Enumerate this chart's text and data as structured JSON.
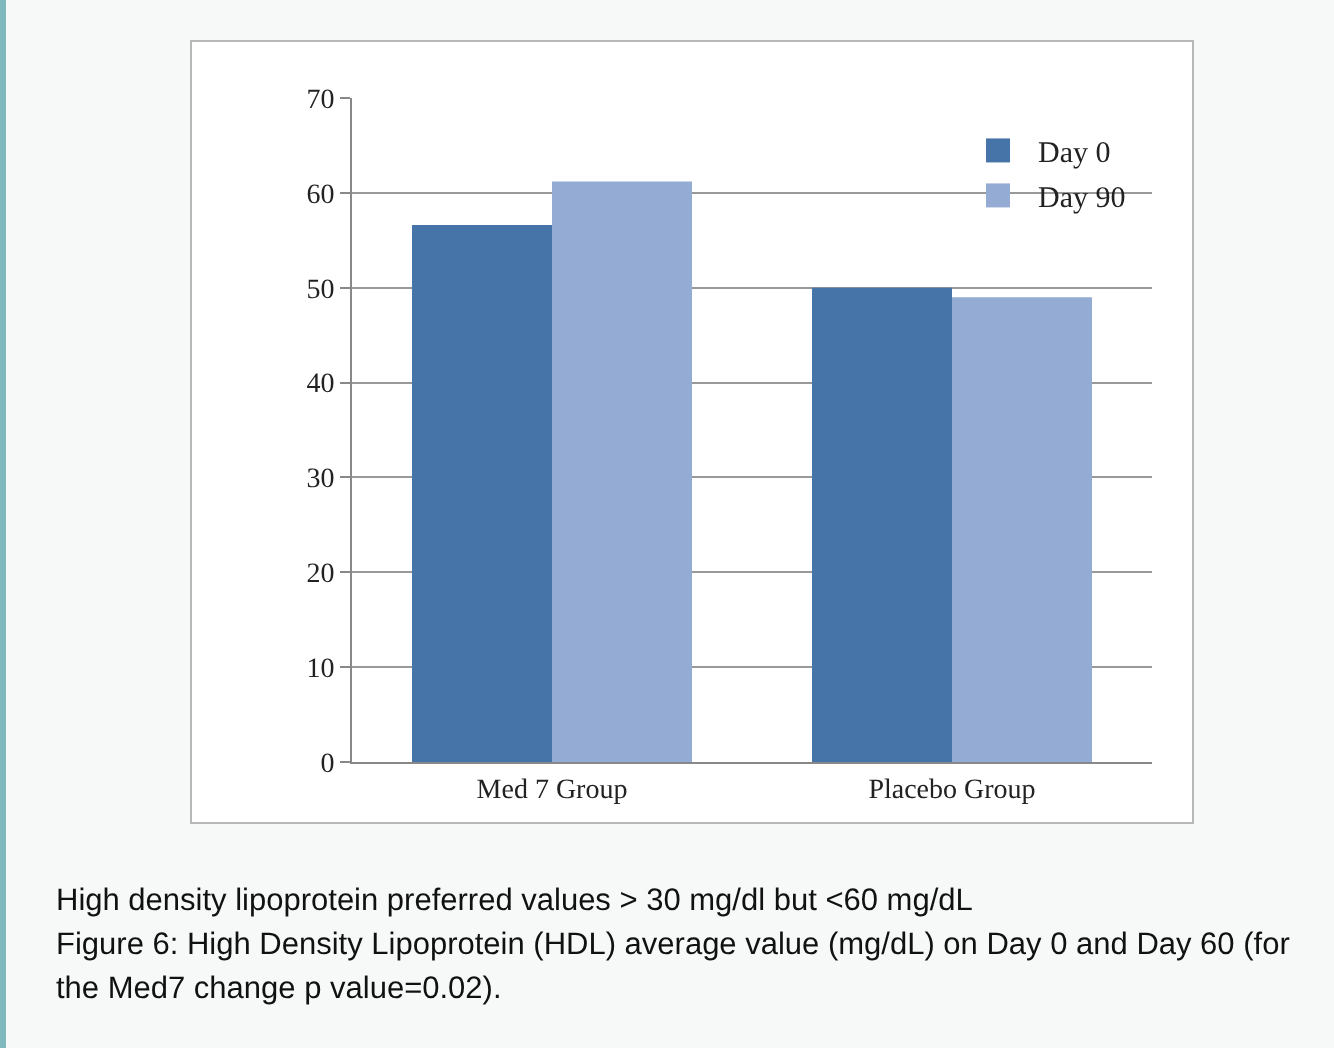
{
  "chart_data": {
    "type": "bar",
    "categories": [
      "Med 7 Group",
      "Placebo Group"
    ],
    "series": [
      {
        "name": "Day 0",
        "color": "#4673a8",
        "values": [
          56.6,
          50
        ]
      },
      {
        "name": "Day 90",
        "color": "#94abd4",
        "values": [
          61.2,
          49
        ]
      }
    ],
    "ylim": [
      0,
      70
    ],
    "yticks": [
      0,
      10,
      20,
      30,
      40,
      50,
      60,
      70
    ],
    "grid": "y",
    "legend": "top right",
    "annotations": [
      "High density lipoprotein preferred values > 30 mg/dl but <60 mg/dL",
      "Figure 6: High Density Lipoprotein (HDL) average value (mg/dL) on Day 0 and Day 60 (for the Med7 change p value=0.02)."
    ]
  }
}
